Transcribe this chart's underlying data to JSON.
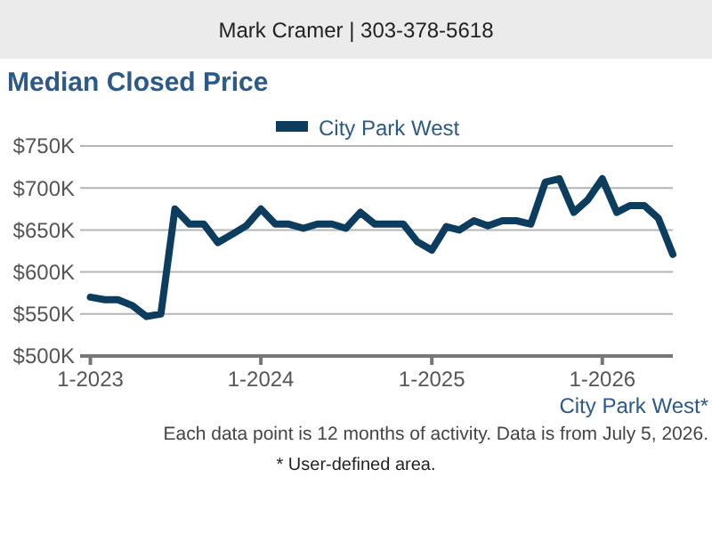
{
  "chart_data": {
    "type": "line",
    "title": "Median Closed Price",
    "annotations": [
      "Mark Cramer | 303-378-5618",
      "City Park West*",
      "Each data point is 12 months of activity. Data is from July 5, 2026.",
      "* User-defined area."
    ],
    "x": [
      "2023-01",
      "2023-02",
      "2023-03",
      "2023-04",
      "2023-05",
      "2023-06",
      "2023-07",
      "2023-08",
      "2023-09",
      "2023-10",
      "2023-11",
      "2023-12",
      "2024-01",
      "2024-02",
      "2024-03",
      "2024-04",
      "2024-05",
      "2024-06",
      "2024-07",
      "2024-08",
      "2024-09",
      "2024-10",
      "2024-11",
      "2024-12",
      "2025-01",
      "2025-02",
      "2025-03",
      "2025-04",
      "2025-05",
      "2025-06",
      "2025-07",
      "2025-08",
      "2025-09",
      "2025-10",
      "2025-11",
      "2025-12",
      "2026-01",
      "2026-02",
      "2026-03",
      "2026-04",
      "2026-05",
      "2026-06"
    ],
    "series": [
      {
        "name": "City Park West",
        "color": "#0d3d5e",
        "values": [
          570,
          567,
          567,
          560,
          547,
          550,
          675,
          657,
          657,
          635,
          645,
          655,
          675,
          657,
          657,
          652,
          657,
          657,
          652,
          671,
          657,
          657,
          657,
          636,
          626,
          654,
          650,
          661,
          655,
          661,
          661,
          657,
          707,
          711,
          671,
          686,
          711,
          671,
          679,
          679,
          664,
          621
        ]
      }
    ],
    "xlim": [
      "2022-12-10",
      "2026-06"
    ],
    "xticks": [
      {
        "value": "2023-01",
        "label": "1-2023"
      },
      {
        "value": "2024-01",
        "label": "1-2024"
      },
      {
        "value": "2025-01",
        "label": "1-2025"
      },
      {
        "value": "2026-01",
        "label": "1-2026"
      }
    ],
    "ylim": [
      500,
      750
    ],
    "yticks": [
      {
        "value": 500,
        "label": "$500K"
      },
      {
        "value": 550,
        "label": "$550K"
      },
      {
        "value": 600,
        "label": "$600K"
      },
      {
        "value": 650,
        "label": "$650K"
      },
      {
        "value": 700,
        "label": "$700K"
      },
      {
        "value": 750,
        "label": "$750K"
      }
    ],
    "grid": "y",
    "legend": "top",
    "marker": "none",
    "line_style": "solid"
  }
}
